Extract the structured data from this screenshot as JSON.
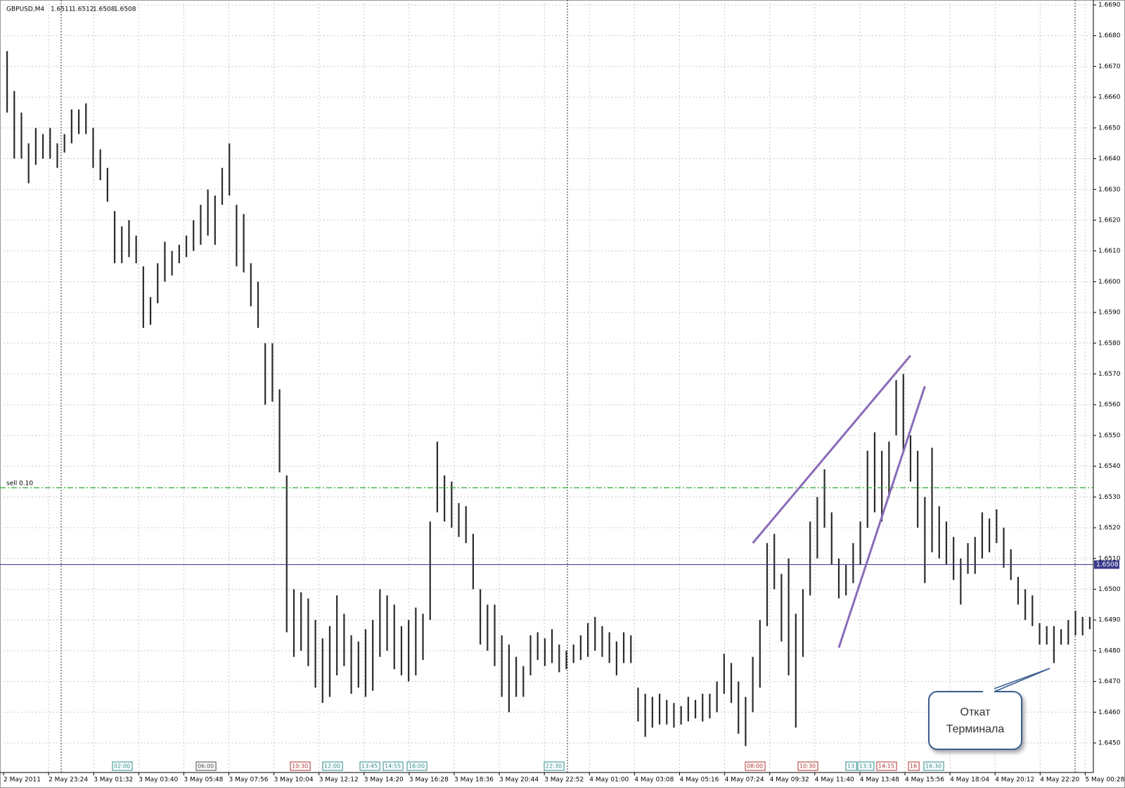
{
  "chart_data": {
    "type": "range-bar",
    "symbol": "GBPUSD,M4",
    "ohlc": [
      1.6511,
      1.6512,
      1.6508,
      1.6508
    ],
    "ylim": [
      1.645,
      1.669
    ],
    "yticks": [
      {
        "value": 1.669,
        "label": "1.6690"
      },
      {
        "value": 1.668,
        "label": "1.6680"
      },
      {
        "value": 1.667,
        "label": "1.6670"
      },
      {
        "value": 1.666,
        "label": "1.6660"
      },
      {
        "value": 1.665,
        "label": "1.6650"
      },
      {
        "value": 1.664,
        "label": "1.6640"
      },
      {
        "value": 1.663,
        "label": "1.6630"
      },
      {
        "value": 1.662,
        "label": "1.6620"
      },
      {
        "value": 1.661,
        "label": "1.6610"
      },
      {
        "value": 1.66,
        "label": "1.6600"
      },
      {
        "value": 1.659,
        "label": "1.6590"
      },
      {
        "value": 1.658,
        "label": "1.6580"
      },
      {
        "value": 1.657,
        "label": "1.6570"
      },
      {
        "value": 1.656,
        "label": "1.6560"
      },
      {
        "value": 1.655,
        "label": "1.6550"
      },
      {
        "value": 1.654,
        "label": "1.6540"
      },
      {
        "value": 1.653,
        "label": "1.6530"
      },
      {
        "value": 1.652,
        "label": "1.6520"
      },
      {
        "value": 1.651,
        "label": "1.6510"
      },
      {
        "value": 1.65,
        "label": "1.6500"
      },
      {
        "value": 1.649,
        "label": "1.6490"
      },
      {
        "value": 1.648,
        "label": "1.6480"
      },
      {
        "value": 1.647,
        "label": "1.6470"
      },
      {
        "value": 1.646,
        "label": "1.6460"
      },
      {
        "value": 1.645,
        "label": "1.6450"
      }
    ],
    "grid": true,
    "x_labels": [
      "2 May 2011",
      "2 May 23:24",
      "3 May 01:32",
      "3 May 03:40",
      "3 May 05:48",
      "3 May 07:56",
      "3 May 10:04",
      "3 May 12:12",
      "3 May 14:20",
      "3 May 16:28",
      "3 May 18:36",
      "3 May 20:44",
      "3 May 22:52",
      "4 May 01:00",
      "4 May 03:08",
      "4 May 05:16",
      "4 May 07:24",
      "4 May 09:32",
      "4 May 11:40",
      "4 May 13:48",
      "4 May 15:56",
      "4 May 18:04",
      "4 May 20:12",
      "4 May 22:20",
      "5 May 00:28"
    ],
    "series": [
      {
        "name": "GBPUSD,M4",
        "color": "#2b2b2b",
        "high": [
          1.6675,
          1.6662,
          1.6655,
          1.6645,
          1.665,
          1.6648,
          1.665,
          1.6645,
          1.6648,
          1.6656,
          1.6656,
          1.6658,
          1.665,
          1.6643,
          1.6637,
          1.6623,
          1.6618,
          1.662,
          1.6615,
          1.6605,
          1.6595,
          1.6606,
          1.6613,
          1.661,
          1.6612,
          1.6615,
          1.662,
          1.6625,
          1.663,
          1.6628,
          1.6637,
          1.6645,
          1.6625,
          1.6622,
          1.6606,
          1.66,
          1.658,
          1.658,
          1.6565,
          1.6537,
          1.65,
          1.6499,
          1.6497,
          1.649,
          1.6484,
          1.6488,
          1.6498,
          1.6492,
          1.6485,
          1.6483,
          1.6487,
          1.649,
          1.65,
          1.6498,
          1.6495,
          1.6488,
          1.649,
          1.6494,
          1.6492,
          1.6522,
          1.6548,
          1.6537,
          1.6535,
          1.6528,
          1.6527,
          1.6518,
          1.65,
          1.6495,
          1.6495,
          1.6485,
          1.6482,
          1.6478,
          1.6475,
          1.6485,
          1.6486,
          1.6484,
          1.6487,
          1.6482,
          1.648,
          1.6482,
          1.6485,
          1.6489,
          1.6491,
          1.6488,
          1.6486,
          1.6483,
          1.6486,
          1.6485,
          1.6468,
          1.6466,
          1.6465,
          1.6466,
          1.6464,
          1.6463,
          1.6462,
          1.6465,
          1.6464,
          1.6466,
          1.6466,
          1.647,
          1.6479,
          1.6476,
          1.647,
          1.6465,
          1.6478,
          1.649,
          1.6515,
          1.6518,
          1.6505,
          1.651,
          1.6492,
          1.65,
          1.6522,
          1.653,
          1.6539,
          1.6525,
          1.651,
          1.6508,
          1.6515,
          1.6522,
          1.6545,
          1.6551,
          1.6545,
          1.6548,
          1.6568,
          1.657,
          1.655,
          1.6545,
          1.653,
          1.6546,
          1.6527,
          1.6522,
          1.6517,
          1.651,
          1.6515,
          1.6517,
          1.6525,
          1.6523,
          1.6526,
          1.652,
          1.6513,
          1.6504,
          1.65,
          1.6498,
          1.6489,
          1.6488,
          1.6488,
          1.6487,
          1.649,
          1.6493,
          1.6491,
          1.6491
        ],
        "low": [
          1.6655,
          1.664,
          1.664,
          1.6632,
          1.6638,
          1.664,
          1.664,
          1.6637,
          1.6642,
          1.6645,
          1.6648,
          1.6648,
          1.6637,
          1.6633,
          1.6626,
          1.6606,
          1.6606,
          1.6608,
          1.6606,
          1.6585,
          1.6586,
          1.6593,
          1.66,
          1.6602,
          1.6606,
          1.6608,
          1.661,
          1.6612,
          1.6615,
          1.6612,
          1.6625,
          1.6628,
          1.6605,
          1.6603,
          1.6592,
          1.6585,
          1.656,
          1.6561,
          1.6538,
          1.6486,
          1.6478,
          1.648,
          1.6475,
          1.6468,
          1.6463,
          1.6465,
          1.6472,
          1.6475,
          1.6466,
          1.6468,
          1.6465,
          1.6467,
          1.6478,
          1.648,
          1.6474,
          1.6472,
          1.647,
          1.6472,
          1.6477,
          1.649,
          1.6525,
          1.6522,
          1.652,
          1.6517,
          1.6515,
          1.65,
          1.6482,
          1.648,
          1.6475,
          1.6465,
          1.646,
          1.6465,
          1.6465,
          1.6472,
          1.6477,
          1.6475,
          1.6476,
          1.6473,
          1.6474,
          1.6476,
          1.6477,
          1.6478,
          1.648,
          1.6478,
          1.6476,
          1.6472,
          1.6476,
          1.6476,
          1.6457,
          1.6452,
          1.6455,
          1.6456,
          1.6456,
          1.6455,
          1.6456,
          1.6457,
          1.6458,
          1.6457,
          1.6458,
          1.646,
          1.6466,
          1.6463,
          1.6453,
          1.6449,
          1.646,
          1.6468,
          1.6488,
          1.65,
          1.6483,
          1.6472,
          1.6455,
          1.6478,
          1.6498,
          1.651,
          1.652,
          1.6508,
          1.6497,
          1.6498,
          1.6502,
          1.6508,
          1.652,
          1.6525,
          1.6522,
          1.653,
          1.655,
          1.6545,
          1.6535,
          1.652,
          1.6502,
          1.6512,
          1.651,
          1.6508,
          1.6503,
          1.6495,
          1.6505,
          1.6505,
          1.651,
          1.6512,
          1.6515,
          1.6507,
          1.6503,
          1.6495,
          1.649,
          1.6488,
          1.6482,
          1.6482,
          1.6476,
          1.6482,
          1.6482,
          1.6485,
          1.6485,
          1.6487
        ]
      }
    ],
    "order": {
      "label": "sell 0.10",
      "price": 1.6533,
      "color": "#2ea82e"
    },
    "bid": {
      "price": 1.6508,
      "color": "#3a3a8c"
    },
    "drawings": [
      {
        "x": [
          104,
          126
        ],
        "y": [
          1.6515,
          1.6576
        ],
        "color": "#8a6bb8"
      },
      {
        "x": [
          116,
          128
        ],
        "y": [
          1.6481,
          1.6566
        ],
        "color": "#8a6bb8"
      }
    ],
    "events": [
      {
        "label": "02:00",
        "color": "#2a8a8a"
      },
      {
        "label": "06:00",
        "color": "#444444"
      },
      {
        "label": "10:30",
        "color": "#b03030"
      },
      {
        "label": "12:00",
        "color": "#2a8a8a"
      },
      {
        "label": "13:45",
        "color": "#2a8a8a"
      },
      {
        "label": "14:55",
        "color": "#2a8a8a"
      },
      {
        "label": "16:00",
        "color": "#2a8a8a"
      },
      {
        "label": "22:30",
        "color": "#2a8a8a"
      },
      {
        "label": "08:00",
        "color": "#b03030"
      },
      {
        "label": "10:30",
        "color": "#b03030"
      },
      {
        "label": "13",
        "color": "#2a8a8a"
      },
      {
        "label": "13:3",
        "color": "#2a8a8a"
      },
      {
        "label": "14:15",
        "color": "#b03030"
      },
      {
        "label": "16",
        "color": "#b03030"
      },
      {
        "label": "16:30",
        "color": "#2a8a8a"
      }
    ],
    "annotation": {
      "lines": [
        "Откат",
        "Терминала"
      ]
    }
  }
}
